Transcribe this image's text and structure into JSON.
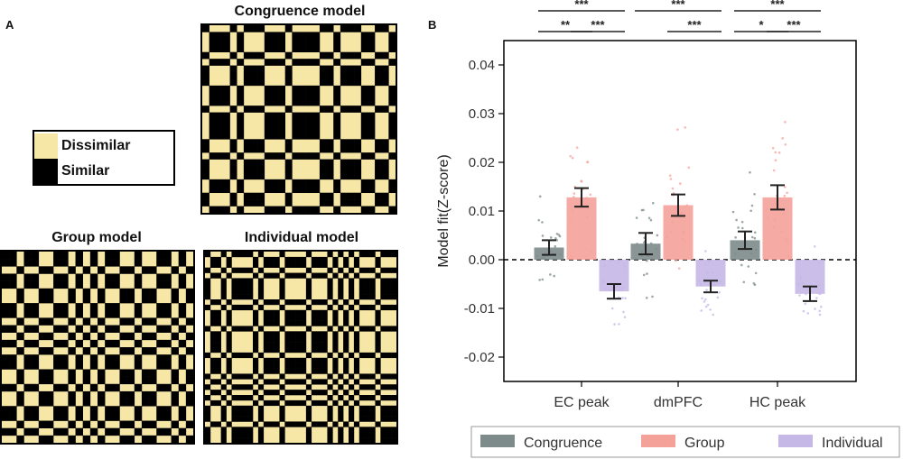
{
  "panel_a": {
    "label": "A",
    "congruence_title": "Congruence model",
    "group_title": "Group model",
    "individual_title": "Individual model",
    "legend": {
      "dissimilar_label": "Dissimilar",
      "similar_label": "Similar",
      "dissimilar_color": "#f7e7a6",
      "similar_color": "#000000"
    }
  },
  "panel_b": {
    "label": "B"
  },
  "chart_data": {
    "type": "bar",
    "categories": [
      "EC peak",
      "dmPFC",
      "HC peak"
    ],
    "ylabel": "Model fit(Z-score)",
    "xlabel": "",
    "ylim": [
      -0.025,
      0.045
    ],
    "yticks": [
      "0.04",
      "0.03",
      "0.02",
      "0.01",
      "0.00",
      "-0.01",
      "-0.02"
    ],
    "ytick_values": [
      0.04,
      0.03,
      0.02,
      0.01,
      0.0,
      -0.01,
      -0.02
    ],
    "grid": false,
    "zero_line": "dashed",
    "legend_position": "bottom",
    "series": [
      {
        "name": "Congruence",
        "color": "#7d8b8a",
        "values": [
          0.0025,
          0.0033,
          0.004
        ],
        "errors": [
          0.0015,
          0.0022,
          0.0018
        ]
      },
      {
        "name": "Group",
        "color": "#f4a19a",
        "values": [
          0.0128,
          0.0112,
          0.0128
        ],
        "errors": [
          0.0019,
          0.0022,
          0.0025
        ]
      },
      {
        "name": "Individual",
        "color": "#c5b7e6",
        "values": [
          -0.0065,
          -0.0055,
          -0.007
        ],
        "errors": [
          0.0015,
          0.0012,
          0.0015
        ]
      }
    ],
    "significance": [
      {
        "category": "EC peak",
        "bars": [
          {
            "pair": [
              "Congruence",
              "Individual"
            ],
            "label": "***",
            "level": 2
          },
          {
            "pair": [
              "Congruence",
              "Group"
            ],
            "label": "**",
            "level": 1
          },
          {
            "pair": [
              "Group",
              "Individual"
            ],
            "label": "***",
            "level": 1
          }
        ]
      },
      {
        "category": "dmPFC",
        "bars": [
          {
            "pair": [
              "Congruence",
              "Individual"
            ],
            "label": "***",
            "level": 2
          },
          {
            "pair": [
              "Group",
              "Individual"
            ],
            "label": "***",
            "level": 1
          }
        ]
      },
      {
        "category": "HC peak",
        "bars": [
          {
            "pair": [
              "Congruence",
              "Individual"
            ],
            "label": "***",
            "level": 2
          },
          {
            "pair": [
              "Congruence",
              "Group"
            ],
            "label": "*",
            "level": 1
          },
          {
            "pair": [
              "Group",
              "Individual"
            ],
            "label": "***",
            "level": 1
          }
        ]
      }
    ]
  }
}
